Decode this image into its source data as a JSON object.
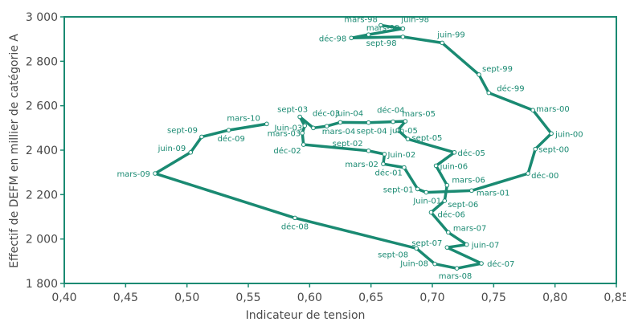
{
  "chart_data": {
    "type": "line",
    "title": "",
    "xlabel": "Indicateur de tension",
    "ylabel": "Effectif de DEFM en millier de catégorie A",
    "xlim": [
      0.4,
      0.85
    ],
    "ylim": [
      1800,
      3000
    ],
    "xticks": [
      "0,40",
      "0,45",
      "0,50",
      "0,55",
      "0,60",
      "0,65",
      "0,70",
      "0,75",
      "0,80",
      "0,85"
    ],
    "yticks": [
      "1 800",
      "2 000",
      "2 200",
      "2 400",
      "2 600",
      "2 800",
      "3 000"
    ],
    "grid": false,
    "legend": "none",
    "series": [
      {
        "color": "#1a8a72",
        "points": [
          {
            "label": "mars-98",
            "x": 0.658,
            "y": 2962
          },
          {
            "label": "juin-98",
            "x": 0.676,
            "y": 2947
          },
          {
            "label": "sept-98",
            "x": 0.648,
            "y": 2920
          },
          {
            "label": "déc-98",
            "x": 0.634,
            "y": 2905
          },
          {
            "label": "mars-99",
            "x": 0.676,
            "y": 2910
          },
          {
            "label": "juin-99",
            "x": 0.708,
            "y": 2883
          },
          {
            "label": "sept-99",
            "x": 0.738,
            "y": 2740
          },
          {
            "label": "déc-99",
            "x": 0.746,
            "y": 2658
          },
          {
            "label": "mars-00",
            "x": 0.782,
            "y": 2580
          },
          {
            "label": "juin-00",
            "x": 0.797,
            "y": 2475
          },
          {
            "label": "sept-00",
            "x": 0.784,
            "y": 2405
          },
          {
            "label": "déc-00",
            "x": 0.778,
            "y": 2295
          },
          {
            "label": "mars-01",
            "x": 0.732,
            "y": 2218
          },
          {
            "label": "Juin-01",
            "x": 0.695,
            "y": 2210
          },
          {
            "label": "sept-01",
            "x": 0.688,
            "y": 2225
          },
          {
            "label": "déc-01",
            "x": 0.677,
            "y": 2322
          },
          {
            "label": "mars-02",
            "x": 0.66,
            "y": 2338
          },
          {
            "label": "Juin-02",
            "x": 0.661,
            "y": 2382
          },
          {
            "label": "sept-02",
            "x": 0.648,
            "y": 2397
          },
          {
            "label": "déc-02",
            "x": 0.595,
            "y": 2425
          },
          {
            "label": "mars-03",
            "x": 0.594,
            "y": 2477
          },
          {
            "label": "Juin-03",
            "x": 0.596,
            "y": 2510
          },
          {
            "label": "sept-03",
            "x": 0.592,
            "y": 2550
          },
          {
            "label": "déc-03",
            "x": 0.603,
            "y": 2500
          },
          {
            "label": "mars-04",
            "x": 0.614,
            "y": 2508
          },
          {
            "label": "juin-04",
            "x": 0.625,
            "y": 2525
          },
          {
            "label": "sept-04",
            "x": 0.648,
            "y": 2524
          },
          {
            "label": "déc-04",
            "x": 0.668,
            "y": 2528
          },
          {
            "label": "mars-05",
            "x": 0.678,
            "y": 2530
          },
          {
            "label": "juin-05",
            "x": 0.672,
            "y": 2490
          },
          {
            "label": "sept-05",
            "x": 0.68,
            "y": 2450
          },
          {
            "label": "déc-05",
            "x": 0.718,
            "y": 2390
          },
          {
            "label": "juin-06",
            "x": 0.703,
            "y": 2330
          },
          {
            "label": "mars-06",
            "x": 0.712,
            "y": 2242
          },
          {
            "label": "sept-06",
            "x": 0.71,
            "y": 2172
          },
          {
            "label": "déc-06",
            "x": 0.699,
            "y": 2120
          },
          {
            "label": "mars-07",
            "x": 0.713,
            "y": 2030
          },
          {
            "label": "juin-07",
            "x": 0.728,
            "y": 1975
          },
          {
            "label": "sept-07",
            "x": 0.712,
            "y": 1962
          },
          {
            "label": "déc-07",
            "x": 0.74,
            "y": 1890
          },
          {
            "label": "mars-08",
            "x": 0.72,
            "y": 1868
          },
          {
            "label": "Juin-08",
            "x": 0.702,
            "y": 1888
          },
          {
            "label": "sept-08",
            "x": 0.687,
            "y": 1958
          },
          {
            "label": "déc-08",
            "x": 0.588,
            "y": 2095
          },
          {
            "label": "mars-09",
            "x": 0.474,
            "y": 2295
          },
          {
            "label": "juin-09",
            "x": 0.503,
            "y": 2390
          },
          {
            "label": "sept-09",
            "x": 0.512,
            "y": 2460
          },
          {
            "label": "déc-09",
            "x": 0.534,
            "y": 2490
          },
          {
            "label": "mars-10",
            "x": 0.565,
            "y": 2518
          }
        ]
      }
    ]
  }
}
